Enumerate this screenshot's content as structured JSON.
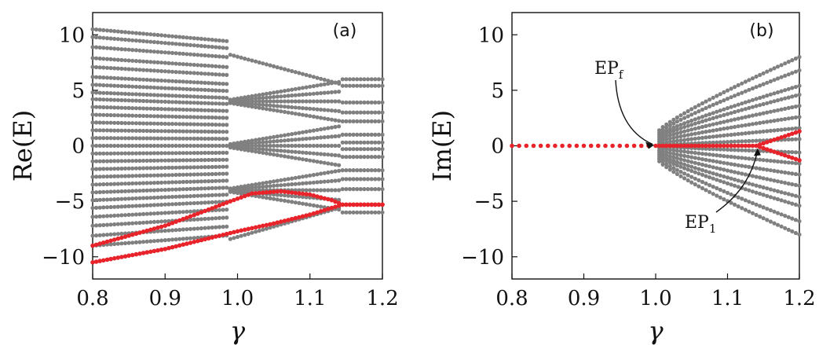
{
  "chart_data": [
    {
      "type": "scatter",
      "panel_label": "(a)",
      "xlabel": "γ",
      "ylabel": "Re(E)",
      "xlim": [
        0.8,
        1.2
      ],
      "ylim": [
        -12,
        12
      ],
      "xticks": [
        "0.8",
        "0.9",
        "1.0",
        "1.1",
        "1.2"
      ],
      "yticks": [
        "−10",
        "−5",
        "0",
        "5",
        "10"
      ],
      "grid": false,
      "series": [
        {
          "color": "#808080",
          "description": "all eigenvalues (real part)",
          "x_start": 0.8,
          "x_end": 1.2,
          "x_step": 0.005,
          "bands_low_gamma": [
            10.5,
            9.8,
            8.9,
            7.9,
            7.1,
            6.2,
            5.5,
            4.8,
            4.2,
            3.5,
            2.8,
            2.1,
            1.4,
            0.7,
            0.0,
            -0.7,
            -1.4,
            -2.1,
            -2.8,
            -3.5,
            -4.2,
            -4.9,
            -5.6,
            -6.4,
            -7.2,
            -8.1,
            -9.0
          ],
          "clusters_mid_gamma": [
            4.0,
            0.0,
            -4.0
          ],
          "bands_high_gamma": [
            6.0,
            5.4,
            3.9,
            3.0,
            2.2,
            1.0,
            0.3,
            -0.3,
            -1.0,
            -2.2,
            -3.0,
            -3.9,
            -6.0
          ]
        },
        {
          "color": "#e8232a",
          "description": "highlighted eigenvalue pair (real part)",
          "points_upper": [
            [
              0.8,
              -9.0
            ],
            [
              0.9,
              -7.2
            ],
            [
              0.95,
              -6.0
            ],
            [
              0.99,
              -5.0
            ],
            [
              1.02,
              -4.3
            ],
            [
              1.06,
              -4.1
            ],
            [
              1.1,
              -4.4
            ],
            [
              1.13,
              -4.9
            ],
            [
              1.145,
              -5.3
            ],
            [
              1.2,
              -5.3
            ]
          ],
          "points_lower": [
            [
              0.8,
              -10.5
            ],
            [
              0.9,
              -9.3
            ],
            [
              0.95,
              -8.5
            ],
            [
              1.0,
              -7.7
            ],
            [
              1.05,
              -7.0
            ],
            [
              1.1,
              -6.2
            ],
            [
              1.13,
              -5.6
            ],
            [
              1.145,
              -5.3
            ],
            [
              1.2,
              -5.3
            ]
          ]
        }
      ]
    },
    {
      "type": "scatter",
      "panel_label": "(b)",
      "xlabel": "γ",
      "ylabel": "Im(E)",
      "xlim": [
        0.8,
        1.2
      ],
      "ylim": [
        -12,
        12
      ],
      "xticks": [
        "0.8",
        "0.9",
        "1.0",
        "1.1",
        "1.2"
      ],
      "yticks": [
        "−10",
        "−5",
        "0",
        "5",
        "10"
      ],
      "grid": false,
      "series": [
        {
          "color": "#808080",
          "description": "all eigenvalues (imaginary part), fanning out after γ = 1.0",
          "x_start": 1.005,
          "x_end": 1.2,
          "x_step": 0.005,
          "edge_values_at_1_2": [
            8.0,
            6.8,
            5.4,
            4.6,
            3.6,
            2.6,
            1.6,
            0.6,
            -0.6,
            -1.6,
            -2.6,
            -3.6,
            -4.6,
            -5.4,
            -6.8,
            -8.0
          ],
          "edge_values_at_1_005": [
            1.4,
            1.2,
            1.0,
            0.8,
            0.6,
            0.4,
            0.2,
            0.05,
            -0.05,
            -0.2,
            -0.4,
            -0.6,
            -0.8,
            -1.0,
            -1.2,
            -1.4
          ]
        },
        {
          "color": "#e8232a",
          "description": "highlighted eigenvalue pair (imaginary part)",
          "points": [
            [
              0.8,
              0.0
            ],
            [
              1.0,
              0.0
            ],
            [
              1.14,
              0.0
            ],
            [
              1.2,
              1.3
            ]
          ],
          "points_mirror": [
            [
              1.14,
              0.0
            ],
            [
              1.2,
              -1.3
            ]
          ]
        }
      ],
      "annotations": [
        {
          "label": "EP",
          "subscript": "f",
          "x": 1.0,
          "y": 0.0
        },
        {
          "label": "EP",
          "subscript": "1",
          "x": 1.142,
          "y": 0.0
        }
      ]
    }
  ]
}
